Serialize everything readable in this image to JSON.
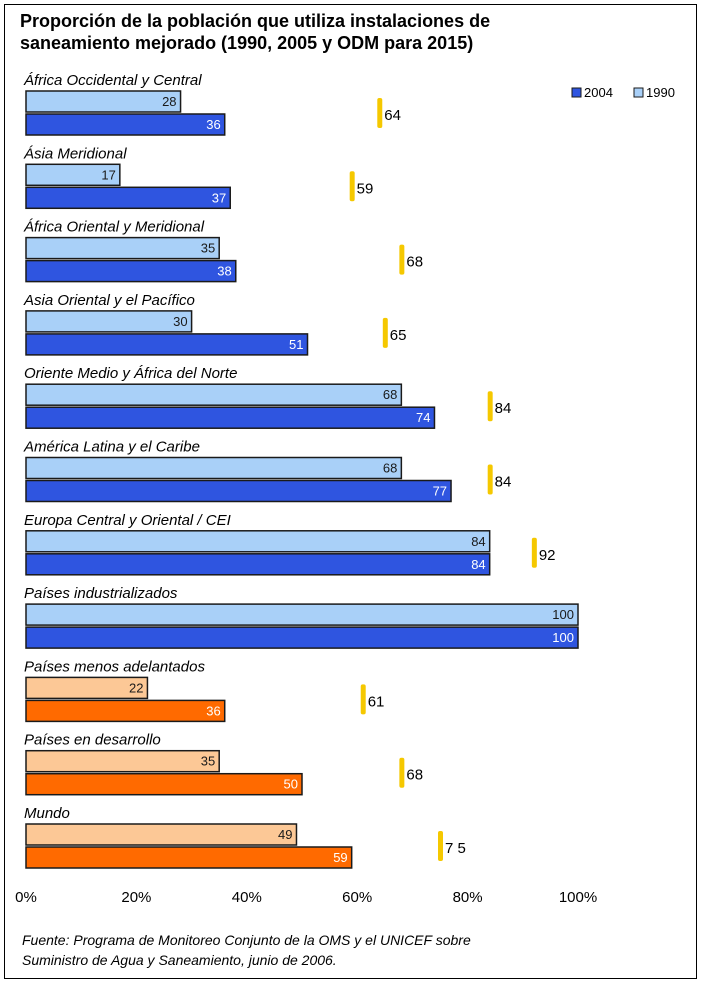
{
  "title_lines": [
    "Proporción de la población que utiliza instalaciones de",
    "saneamiento mejorado (1990, 2005 y ODM para 2015)"
  ],
  "source_lines": [
    "Fuente: Programa de Monitoreo Conjunto de la OMS y el UNICEF sobre",
    "Suministro de Agua y Saneamiento, junio de 2006."
  ],
  "colors": {
    "bar2004_regions": "#2f55e0",
    "bar1990_regions": "#a9d0f8",
    "bar2004_aggregates": "#ff6a00",
    "bar1990_aggregates": "#fcc896",
    "target_marker": "#f5c800",
    "bar_outline": "#1a1a1a"
  },
  "chart_data": {
    "type": "bar",
    "orientation": "horizontal",
    "title": "Proporción de la población que utiliza instalaciones de saneamiento mejorado (1990, 2005 y ODM para 2015)",
    "categories": [
      "África Occidental y Central",
      "Ásia Meridional",
      "África Oriental y Meridional",
      "Asia Oriental y el Pacífico",
      "Oriente Medio y África del Norte",
      "América Latina y el Caribe",
      "Europa Central y Oriental / CEI",
      "Países industrializados",
      "Países menos adelantados",
      "Países en desarrollo",
      "Mundo"
    ],
    "series": [
      {
        "name": "1990",
        "values": [
          28,
          17,
          35,
          30,
          68,
          68,
          84,
          100,
          22,
          35,
          49
        ]
      },
      {
        "name": "2004",
        "values": [
          36,
          37,
          38,
          51,
          74,
          77,
          84,
          100,
          36,
          50,
          59
        ]
      }
    ],
    "targets": [
      {
        "value": 64,
        "label": "64"
      },
      {
        "value": 59,
        "label": "59"
      },
      {
        "value": 68,
        "label": "68"
      },
      {
        "value": 65,
        "label": "65"
      },
      {
        "value": 84,
        "label": "84"
      },
      {
        "value": 84,
        "label": "84"
      },
      {
        "value": 92,
        "label": "92"
      },
      null,
      {
        "value": 61,
        "label": "61"
      },
      {
        "value": 68,
        "label": "68"
      },
      {
        "value": 75,
        "label": "7 5"
      }
    ],
    "aggregate_groups": [
      "Países menos adelantados",
      "Países en desarrollo",
      "Mundo"
    ],
    "x_ticks": [
      "0%",
      "20%",
      "40%",
      "60%",
      "80%",
      "100%"
    ],
    "xlim": [
      0,
      100
    ],
    "xlabel": "",
    "ylabel": "",
    "grid": false,
    "legend": {
      "position": "top-right",
      "entries": [
        "2004",
        "1990"
      ]
    }
  }
}
